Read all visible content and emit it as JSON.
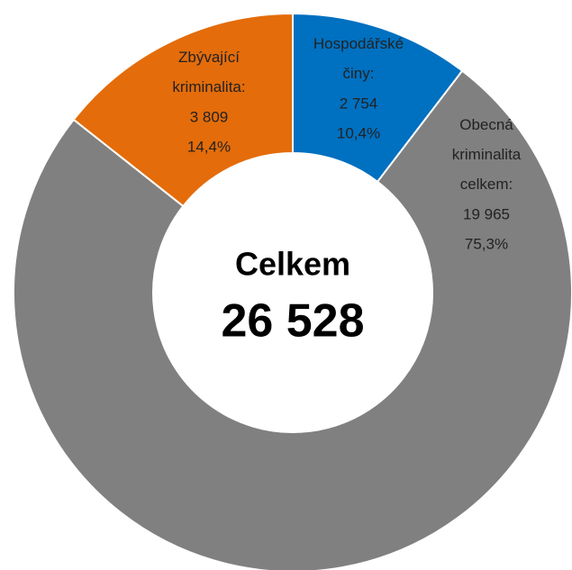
{
  "chart_data": {
    "type": "donut",
    "center_label": "Celkem",
    "total_label": "26 528",
    "categories": [
      "Hospodářské činy:",
      "Obecná kriminalita celkem:",
      "Zbývající kriminalita:"
    ],
    "values": [
      2754,
      19965,
      3809
    ],
    "value_labels": [
      "2 754",
      "19 965",
      "3 809"
    ],
    "percent_labels": [
      "10,4%",
      "75,3%",
      "14,4%"
    ],
    "colors": [
      "#0070c0",
      "#808080",
      "#e46c0a"
    ]
  }
}
